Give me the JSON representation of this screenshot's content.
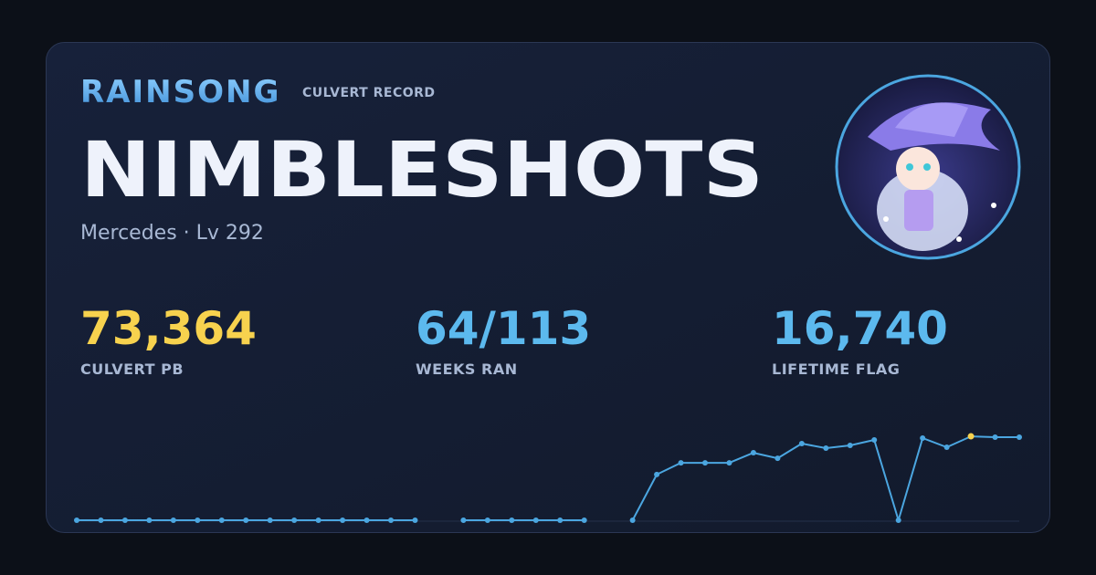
{
  "header": {
    "guild": "RAINSONG",
    "record_label": "CULVERT RECORD",
    "character": "NIMBLESHOTS",
    "subtitle": "Mercedes · Lv 292"
  },
  "stats": [
    {
      "value": "73,364",
      "label": "CULVERT PB",
      "color": "#f7d24e"
    },
    {
      "value": "64/113",
      "label": "WEEKS RAN",
      "color": "#5cb9ee"
    },
    {
      "value": "16,740",
      "label": "LIFETIME FLAG",
      "color": "#5cb9ee"
    }
  ],
  "chart_data": {
    "type": "line",
    "color": "#4ba6e0",
    "highlight_color": "#f7d24e",
    "values": [
      0,
      0,
      0,
      0,
      0,
      0,
      0,
      0,
      0,
      0,
      0,
      0,
      0,
      0,
      0,
      null,
      0,
      0,
      0,
      0,
      0,
      0,
      null,
      0,
      40000,
      50200,
      50200,
      50200,
      59000,
      54200,
      67000,
      63000,
      65400,
      70200,
      0,
      71800,
      63800,
      73364,
      72600,
      72600
    ],
    "ylim": [
      0,
      75000
    ]
  }
}
